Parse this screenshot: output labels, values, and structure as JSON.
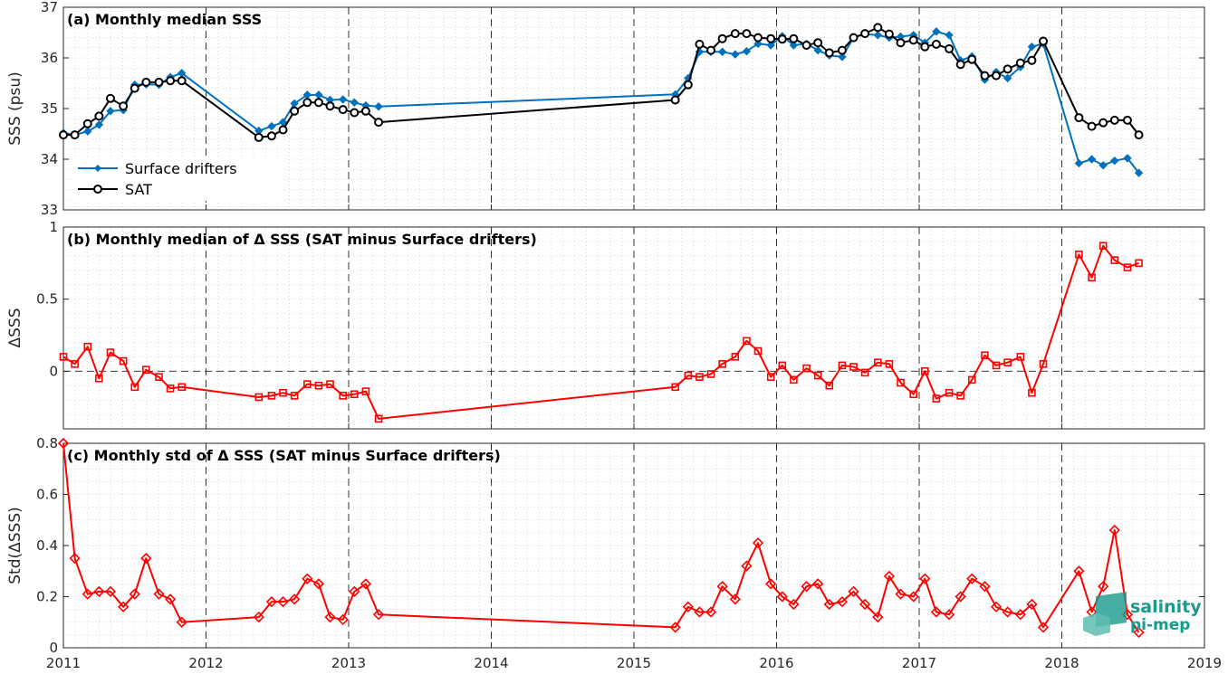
{
  "chart_data": [
    {
      "type": "line",
      "title": "(a) Monthly median SSS",
      "ylabel": "SSS (psu)",
      "xlim": [
        2011,
        2019
      ],
      "ylim": [
        33,
        37
      ],
      "yticks": [
        33,
        34,
        35,
        36,
        37
      ],
      "xticks": [
        2011,
        2012,
        2013,
        2014,
        2015,
        2016,
        2017,
        2018,
        2019
      ],
      "grid": "dotted",
      "legend_position": "bottom-left",
      "series": [
        {
          "name": "Surface drifters",
          "color": "#0072BD",
          "marker": "diamond",
          "x": [
            2011.0,
            2011.08,
            2011.17,
            2011.25,
            2011.33,
            2011.42,
            2011.5,
            2011.58,
            2011.67,
            2011.75,
            2011.83,
            2012.37,
            2012.46,
            2012.54,
            2012.62,
            2012.71,
            2012.79,
            2012.87,
            2012.96,
            2013.04,
            2013.12,
            2013.21,
            2015.29,
            2015.38,
            2015.46,
            2015.54,
            2015.62,
            2015.71,
            2015.79,
            2015.87,
            2015.96,
            2016.04,
            2016.12,
            2016.21,
            2016.29,
            2016.37,
            2016.46,
            2016.54,
            2016.62,
            2016.71,
            2016.79,
            2016.87,
            2016.96,
            2017.04,
            2017.12,
            2017.21,
            2017.29,
            2017.37,
            2017.46,
            2017.54,
            2017.62,
            2017.71,
            2017.79,
            2017.87,
            2018.12,
            2018.21,
            2018.29,
            2018.37,
            2018.46,
            2018.54
          ],
          "values": [
            34.52,
            34.48,
            34.55,
            34.68,
            34.95,
            34.97,
            35.47,
            35.48,
            35.47,
            35.62,
            35.7,
            34.56,
            34.65,
            34.73,
            35.1,
            35.27,
            35.27,
            35.17,
            35.18,
            35.12,
            35.06,
            35.04,
            35.28,
            35.6,
            36.12,
            36.12,
            36.12,
            36.07,
            36.13,
            36.28,
            36.25,
            36.43,
            36.25,
            36.28,
            36.15,
            36.05,
            36.02,
            36.4,
            36.47,
            36.45,
            36.4,
            36.42,
            36.45,
            36.3,
            36.52,
            36.45,
            35.95,
            36.03,
            35.57,
            35.72,
            35.6,
            35.82,
            36.22,
            36.28,
            33.92,
            34.0,
            33.88,
            33.97,
            34.02,
            33.73
          ]
        },
        {
          "name": "SAT",
          "color": "#000000",
          "marker": "circle",
          "x": [
            2011.0,
            2011.08,
            2011.17,
            2011.25,
            2011.33,
            2011.42,
            2011.5,
            2011.58,
            2011.67,
            2011.75,
            2011.83,
            2012.37,
            2012.46,
            2012.54,
            2012.62,
            2012.71,
            2012.79,
            2012.87,
            2012.96,
            2013.04,
            2013.12,
            2013.21,
            2015.29,
            2015.38,
            2015.46,
            2015.54,
            2015.62,
            2015.71,
            2015.79,
            2015.87,
            2015.96,
            2016.04,
            2016.12,
            2016.21,
            2016.29,
            2016.37,
            2016.46,
            2016.54,
            2016.62,
            2016.71,
            2016.79,
            2016.87,
            2016.96,
            2017.04,
            2017.12,
            2017.21,
            2017.29,
            2017.37,
            2017.46,
            2017.54,
            2017.62,
            2017.71,
            2017.79,
            2017.87,
            2018.12,
            2018.21,
            2018.29,
            2018.37,
            2018.46,
            2018.54
          ],
          "values": [
            34.48,
            34.48,
            34.7,
            34.85,
            35.2,
            35.05,
            35.4,
            35.52,
            35.52,
            35.55,
            35.55,
            34.43,
            34.46,
            34.58,
            34.95,
            35.12,
            35.12,
            35.05,
            34.98,
            34.92,
            34.95,
            34.73,
            35.17,
            35.47,
            36.27,
            36.15,
            36.38,
            36.48,
            36.48,
            36.4,
            36.38,
            36.37,
            36.38,
            36.25,
            36.3,
            36.1,
            36.15,
            36.4,
            36.48,
            36.6,
            36.47,
            36.3,
            36.35,
            36.22,
            36.27,
            36.18,
            35.87,
            35.97,
            35.65,
            35.65,
            35.78,
            35.9,
            35.95,
            36.33,
            34.82,
            34.65,
            34.72,
            34.77,
            34.77,
            34.48
          ]
        }
      ]
    },
    {
      "type": "line",
      "title": "(b) Monthly median of Δ SSS (SAT minus Surface drifters)",
      "ylabel": "ΔSSS",
      "xlim": [
        2011,
        2019
      ],
      "ylim": [
        -0.4,
        1
      ],
      "yticks": [
        0,
        0.5,
        1
      ],
      "xticks": [
        2011,
        2012,
        2013,
        2014,
        2015,
        2016,
        2017,
        2018,
        2019
      ],
      "grid": "dotted",
      "zero_line": true,
      "series": [
        {
          "color": "#FF0000",
          "marker": "square",
          "x": [
            2011.0,
            2011.08,
            2011.17,
            2011.25,
            2011.33,
            2011.42,
            2011.5,
            2011.58,
            2011.67,
            2011.75,
            2011.83,
            2012.37,
            2012.46,
            2012.54,
            2012.62,
            2012.71,
            2012.79,
            2012.87,
            2012.96,
            2013.04,
            2013.12,
            2013.21,
            2015.29,
            2015.38,
            2015.46,
            2015.54,
            2015.62,
            2015.71,
            2015.79,
            2015.87,
            2015.96,
            2016.04,
            2016.12,
            2016.21,
            2016.29,
            2016.37,
            2016.46,
            2016.54,
            2016.62,
            2016.71,
            2016.79,
            2016.87,
            2016.96,
            2017.04,
            2017.12,
            2017.21,
            2017.29,
            2017.37,
            2017.46,
            2017.54,
            2017.62,
            2017.71,
            2017.79,
            2017.87,
            2018.12,
            2018.21,
            2018.29,
            2018.37,
            2018.46,
            2018.54
          ],
          "values": [
            0.1,
            0.05,
            0.17,
            -0.05,
            0.13,
            0.07,
            -0.11,
            0.01,
            -0.04,
            -0.12,
            -0.11,
            -0.18,
            -0.17,
            -0.15,
            -0.17,
            -0.09,
            -0.1,
            -0.09,
            -0.17,
            -0.16,
            -0.14,
            -0.33,
            -0.11,
            -0.03,
            -0.04,
            -0.02,
            0.05,
            0.1,
            0.21,
            0.14,
            -0.04,
            0.04,
            -0.06,
            0.02,
            -0.03,
            -0.1,
            0.04,
            0.03,
            -0.01,
            0.06,
            0.05,
            -0.08,
            -0.16,
            0.0,
            -0.19,
            -0.15,
            -0.17,
            -0.06,
            0.11,
            0.04,
            0.06,
            0.1,
            -0.15,
            0.05,
            0.81,
            0.65,
            0.87,
            0.77,
            0.72,
            0.75
          ]
        }
      ]
    },
    {
      "type": "line",
      "title": "(c) Monthly std of Δ SSS (SAT minus Surface drifters)",
      "ylabel": "Std(ΔSSS)",
      "xlim": [
        2011,
        2019
      ],
      "ylim": [
        0,
        0.8
      ],
      "yticks": [
        0,
        0.2,
        0.4,
        0.6,
        0.8
      ],
      "xticks": [
        2011,
        2012,
        2013,
        2014,
        2015,
        2016,
        2017,
        2018,
        2019
      ],
      "grid": "dotted",
      "series": [
        {
          "color": "#FF0000",
          "marker": "diamond",
          "x": [
            2011.0,
            2011.08,
            2011.17,
            2011.25,
            2011.33,
            2011.42,
            2011.5,
            2011.58,
            2011.67,
            2011.75,
            2011.83,
            2012.37,
            2012.46,
            2012.54,
            2012.62,
            2012.71,
            2012.79,
            2012.87,
            2012.96,
            2013.04,
            2013.12,
            2013.21,
            2015.29,
            2015.38,
            2015.46,
            2015.54,
            2015.62,
            2015.71,
            2015.79,
            2015.87,
            2015.96,
            2016.04,
            2016.12,
            2016.21,
            2016.29,
            2016.37,
            2016.46,
            2016.54,
            2016.62,
            2016.71,
            2016.79,
            2016.87,
            2016.96,
            2017.04,
            2017.12,
            2017.21,
            2017.29,
            2017.37,
            2017.46,
            2017.54,
            2017.62,
            2017.71,
            2017.79,
            2017.87,
            2018.12,
            2018.21,
            2018.29,
            2018.37,
            2018.46,
            2018.54
          ],
          "values": [
            0.8,
            0.35,
            0.21,
            0.22,
            0.22,
            0.16,
            0.21,
            0.35,
            0.21,
            0.19,
            0.1,
            0.12,
            0.18,
            0.18,
            0.19,
            0.27,
            0.25,
            0.12,
            0.11,
            0.22,
            0.25,
            0.13,
            0.08,
            0.16,
            0.14,
            0.14,
            0.24,
            0.19,
            0.32,
            0.41,
            0.25,
            0.2,
            0.17,
            0.24,
            0.25,
            0.17,
            0.18,
            0.22,
            0.17,
            0.12,
            0.28,
            0.21,
            0.2,
            0.27,
            0.14,
            0.13,
            0.2,
            0.27,
            0.24,
            0.16,
            0.14,
            0.13,
            0.17,
            0.08,
            0.3,
            0.14,
            0.24,
            0.46,
            0.13,
            0.06
          ]
        }
      ]
    }
  ],
  "logo": {
    "line1": "salinity",
    "line2": "pi-mep"
  }
}
